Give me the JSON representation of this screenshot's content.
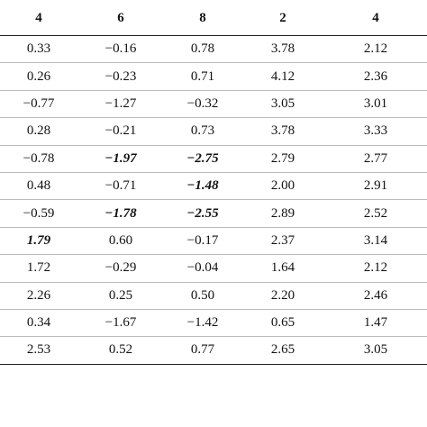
{
  "table": {
    "header": [
      "4",
      "6",
      "8",
      "2",
      "4"
    ],
    "rows": [
      [
        "0.33",
        "−0.16",
        "0.78",
        "3.78",
        "2.12"
      ],
      [
        "0.26",
        "−0.23",
        "0.71",
        "4.12",
        "2.36"
      ],
      [
        "−0.77",
        "−1.27",
        "−0.32",
        "3.05",
        "3.01"
      ],
      [
        "0.28",
        "−0.21",
        "0.73",
        "3.78",
        "3.33"
      ],
      [
        "−0.78",
        "−1.97",
        "−2.75",
        "2.79",
        "2.77"
      ],
      [
        "0.48",
        "−0.71",
        "−1.48",
        "2.00",
        "2.91"
      ],
      [
        "−0.59",
        "−1.78",
        "−2.55",
        "2.89",
        "2.52"
      ],
      [
        "1.79",
        "0.60",
        "−0.17",
        "2.37",
        "3.14"
      ],
      [
        "1.72",
        "−0.29",
        "−0.04",
        "1.64",
        "2.12"
      ],
      [
        "2.26",
        "0.25",
        "0.50",
        "2.20",
        "2.46"
      ],
      [
        "0.34",
        "−1.67",
        "−1.42",
        "0.65",
        "1.47"
      ],
      [
        "2.53",
        "0.52",
        "0.77",
        "2.65",
        "3.05"
      ]
    ]
  }
}
